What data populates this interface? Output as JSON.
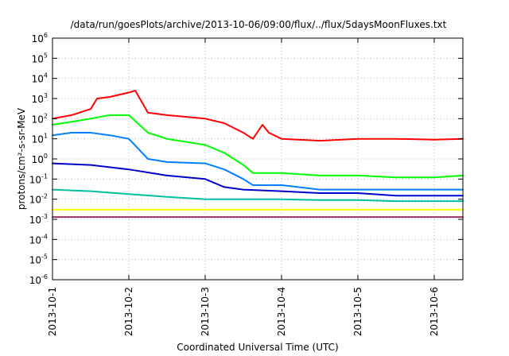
{
  "chart_data": {
    "type": "line",
    "title": "/data/run/goesPlots/archive/2013-10-06/09:00/flux/../flux/5daysMoonFluxes.txt",
    "xlabel": "Coordinated Universal Time (UTC)",
    "ylabel": "protons/cm²-s-sr-MeV",
    "y_scale": "log",
    "ylim": [
      1e-06,
      1000000.0
    ],
    "xlim": [
      "2013-10-01T00:00",
      "2013-10-06T09:00"
    ],
    "grid": true,
    "legend": "none",
    "x_ticks": [
      "2013-10-1",
      "2013-10-2",
      "2013-10-3",
      "2013-10-4",
      "2013-10-5",
      "2013-10-6"
    ],
    "y_ticks": [
      {
        "base": "10",
        "exp": "6"
      },
      {
        "base": "10",
        "exp": "5"
      },
      {
        "base": "10",
        "exp": "4"
      },
      {
        "base": "10",
        "exp": "3"
      },
      {
        "base": "10",
        "exp": "2"
      },
      {
        "base": "10",
        "exp": "1"
      },
      {
        "base": "10",
        "exp": "0"
      },
      {
        "base": "10",
        "exp": "-1"
      },
      {
        "base": "10",
        "exp": "-2"
      },
      {
        "base": "10",
        "exp": "-3"
      },
      {
        "base": "10",
        "exp": "-4"
      },
      {
        "base": "10",
        "exp": "-5"
      },
      {
        "base": "10",
        "exp": "-6"
      }
    ],
    "series": [
      {
        "color": "#ff0000",
        "x": [
          "2013-10-01T00:00",
          "2013-10-01T06:00",
          "2013-10-01T12:00",
          "2013-10-01T14:00",
          "2013-10-01T18:00",
          "2013-10-02T00:00",
          "2013-10-02T02:00",
          "2013-10-02T06:00",
          "2013-10-02T12:00",
          "2013-10-03T00:00",
          "2013-10-03T06:00",
          "2013-10-03T12:00",
          "2013-10-03T15:00",
          "2013-10-03T18:00",
          "2013-10-03T20:00",
          "2013-10-04T00:00",
          "2013-10-04T12:00",
          "2013-10-05T00:00",
          "2013-10-05T12:00",
          "2013-10-06T00:00",
          "2013-10-06T09:00"
        ],
        "y": [
          100,
          150,
          300,
          1000,
          1200,
          2000,
          2500,
          200,
          150,
          100,
          60,
          20,
          10,
          50,
          20,
          10,
          8,
          10,
          10,
          9,
          10
        ]
      },
      {
        "color": "#00ff00",
        "x": [
          "2013-10-01T00:00",
          "2013-10-01T06:00",
          "2013-10-01T12:00",
          "2013-10-01T18:00",
          "2013-10-02T00:00",
          "2013-10-02T06:00",
          "2013-10-02T12:00",
          "2013-10-03T00:00",
          "2013-10-03T06:00",
          "2013-10-03T12:00",
          "2013-10-03T15:00",
          "2013-10-04T00:00",
          "2013-10-04T12:00",
          "2013-10-05T00:00",
          "2013-10-05T12:00",
          "2013-10-06T00:00",
          "2013-10-06T09:00"
        ],
        "y": [
          50,
          70,
          100,
          150,
          150,
          20,
          10,
          5,
          2,
          0.5,
          0.2,
          0.2,
          0.15,
          0.15,
          0.12,
          0.12,
          0.15
        ]
      },
      {
        "color": "#0080ff",
        "x": [
          "2013-10-01T00:00",
          "2013-10-01T06:00",
          "2013-10-01T12:00",
          "2013-10-01T18:00",
          "2013-10-02T00:00",
          "2013-10-02T06:00",
          "2013-10-02T12:00",
          "2013-10-03T00:00",
          "2013-10-03T06:00",
          "2013-10-03T12:00",
          "2013-10-03T15:00",
          "2013-10-04T00:00",
          "2013-10-04T12:00",
          "2013-10-05T00:00",
          "2013-10-05T12:00",
          "2013-10-06T00:00",
          "2013-10-06T09:00"
        ],
        "y": [
          15,
          20,
          20,
          15,
          10,
          1,
          0.7,
          0.6,
          0.3,
          0.1,
          0.05,
          0.05,
          0.03,
          0.03,
          0.03,
          0.03,
          0.03
        ]
      },
      {
        "color": "#0000cc",
        "x": [
          "2013-10-01T00:00",
          "2013-10-01T12:00",
          "2013-10-02T00:00",
          "2013-10-02T12:00",
          "2013-10-03T00:00",
          "2013-10-03T06:00",
          "2013-10-03T12:00",
          "2013-10-04T00:00",
          "2013-10-04T12:00",
          "2013-10-05T00:00",
          "2013-10-05T12:00",
          "2013-10-06T00:00",
          "2013-10-06T09:00"
        ],
        "y": [
          0.6,
          0.5,
          0.3,
          0.15,
          0.1,
          0.04,
          0.03,
          0.025,
          0.02,
          0.02,
          0.015,
          0.015,
          0.015
        ]
      },
      {
        "color": "#00c0a0",
        "x": [
          "2013-10-01T00:00",
          "2013-10-01T12:00",
          "2013-10-02T00:00",
          "2013-10-02T12:00",
          "2013-10-03T00:00",
          "2013-10-03T12:00",
          "2013-10-04T00:00",
          "2013-10-04T12:00",
          "2013-10-05T00:00",
          "2013-10-05T12:00",
          "2013-10-06T00:00",
          "2013-10-06T09:00"
        ],
        "y": [
          0.03,
          0.025,
          0.018,
          0.013,
          0.01,
          0.01,
          0.01,
          0.009,
          0.009,
          0.008,
          0.008,
          0.008
        ]
      },
      {
        "color": "#ffff00",
        "x": [
          "2013-10-01T00:00",
          "2013-10-02T00:00",
          "2013-10-03T00:00",
          "2013-10-04T00:00",
          "2013-10-05T00:00",
          "2013-10-06T00:00",
          "2013-10-06T09:00"
        ],
        "y": [
          0.003,
          0.003,
          0.003,
          0.003,
          0.003,
          0.003,
          0.003
        ]
      },
      {
        "color": "#993366",
        "x": [
          "2013-10-01T00:00",
          "2013-10-02T00:00",
          "2013-10-03T00:00",
          "2013-10-04T00:00",
          "2013-10-05T00:00",
          "2013-10-06T00:00",
          "2013-10-06T09:00"
        ],
        "y": [
          0.0013,
          0.0013,
          0.0013,
          0.0013,
          0.0013,
          0.0013,
          0.0013
        ]
      }
    ]
  }
}
